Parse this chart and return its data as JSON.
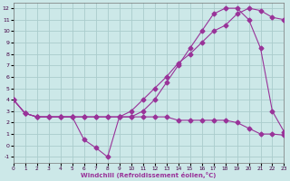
{
  "xlabel": "Windchill (Refroidissement éolien,°C)",
  "bg_color": "#cce8e8",
  "grid_color": "#aacccc",
  "line_color": "#993399",
  "xlim": [
    0,
    23
  ],
  "ylim": [
    -1.5,
    12.5
  ],
  "xticks": [
    0,
    1,
    2,
    3,
    4,
    5,
    6,
    7,
    8,
    9,
    10,
    11,
    12,
    13,
    14,
    15,
    16,
    17,
    18,
    19,
    20,
    21,
    22,
    23
  ],
  "yticks": [
    -1,
    0,
    1,
    2,
    3,
    4,
    5,
    6,
    7,
    8,
    9,
    10,
    11,
    12
  ],
  "line1_x": [
    0,
    1,
    2,
    3,
    4,
    5,
    6,
    7,
    8,
    9,
    10,
    11,
    12,
    13,
    14,
    15,
    16,
    17,
    18,
    19,
    20,
    21,
    22,
    23
  ],
  "line1_y": [
    4.0,
    2.8,
    2.5,
    2.5,
    2.5,
    2.5,
    2.5,
    2.5,
    2.5,
    2.5,
    2.5,
    3.0,
    4.0,
    5.5,
    7.0,
    8.5,
    10.0,
    11.5,
    12.0,
    12.0,
    11.0,
    8.5,
    3.0,
    1.2
  ],
  "line2_x": [
    0,
    1,
    2,
    3,
    4,
    5,
    6,
    7,
    8,
    9,
    10,
    11,
    12,
    13,
    14,
    15,
    16,
    17,
    18,
    19,
    20,
    21,
    22,
    23
  ],
  "line2_y": [
    4.0,
    2.8,
    2.5,
    2.5,
    2.5,
    2.5,
    2.5,
    2.5,
    2.5,
    2.5,
    3.0,
    4.0,
    5.0,
    6.0,
    7.2,
    8.0,
    9.0,
    10.0,
    10.5,
    11.5,
    12.0,
    11.8,
    11.2,
    11.0
  ],
  "line3_x": [
    0,
    1,
    2,
    3,
    4,
    5,
    6,
    7,
    8,
    9,
    10,
    11,
    12,
    13,
    14,
    15,
    16,
    17,
    18,
    19,
    20,
    21,
    22,
    23
  ],
  "line3_y": [
    4.0,
    2.8,
    2.5,
    2.5,
    2.5,
    2.5,
    0.5,
    -0.2,
    -1.0,
    2.5,
    2.5,
    2.5,
    2.5,
    2.5,
    2.2,
    2.2,
    2.2,
    2.2,
    2.2,
    2.0,
    1.5,
    1.0,
    1.0,
    0.9
  ]
}
